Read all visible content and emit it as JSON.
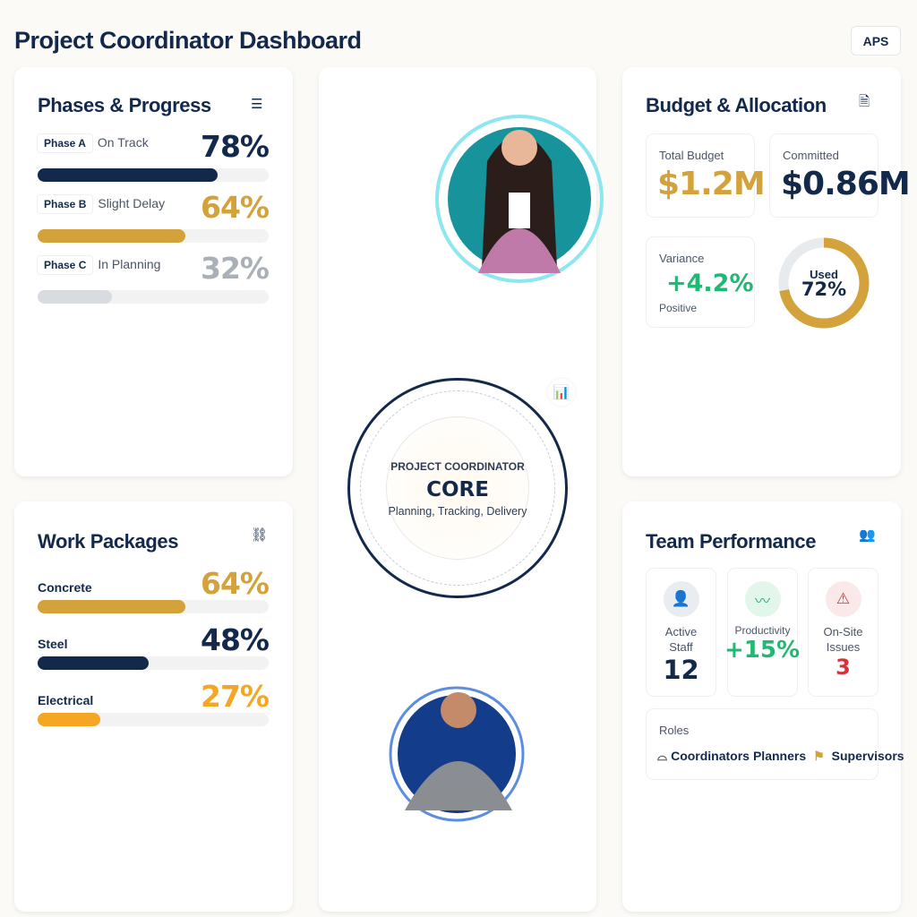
{
  "header": {
    "title": "Project Coordinator Dashboard",
    "aps_label": "APS"
  },
  "colors": {
    "navy": "#13294b",
    "gold": "#d4a23a",
    "amber": "#f5a623",
    "gray": "#a9b0b8",
    "green": "#22b873",
    "red": "#d9303a"
  },
  "phases": {
    "title": "Phases & Progress",
    "icon": "align-left-icon",
    "items": [
      {
        "tag": "Phase A",
        "status": "On Track",
        "percent": 78,
        "label": "78%",
        "color": "#13294b"
      },
      {
        "tag": "Phase B",
        "status": "Slight Delay",
        "percent": 64,
        "label": "64%",
        "color": "#d4a23a"
      },
      {
        "tag": "Phase C",
        "status": "In Planning",
        "percent": 32,
        "label": "32%",
        "color": "#a9b0b8",
        "track_fill": "#d8dce0"
      }
    ]
  },
  "work": {
    "title": "Work Packages",
    "icon": "link-icon",
    "items": [
      {
        "name": "Concrete",
        "percent": 64,
        "label": "64%",
        "color": "#d4a23a"
      },
      {
        "name": "Steel",
        "percent": 48,
        "label": "48%",
        "color": "#13294b"
      },
      {
        "name": "Electrical",
        "percent": 27,
        "label": "27%",
        "color": "#f5a623"
      }
    ]
  },
  "core": {
    "kicker": "PROJECT COORDINATOR",
    "title": "CORE",
    "subtitle": "Planning, Tracking, Delivery",
    "icon": "analytics-icon"
  },
  "budget": {
    "title": "Budget & Allocation",
    "icon": "document-icon",
    "total_label": "Total Budget",
    "total_value": "$1.2M",
    "committed_label": "Committed",
    "committed_value": "$0.86M",
    "variance_label": "Variance",
    "variance_value": "+4.2%",
    "variance_note": "Positive",
    "used_label": "Used",
    "used_value": "72%",
    "used_percent": 72
  },
  "team": {
    "title": "Team Performance",
    "icon": "users-icon",
    "stats": [
      {
        "label": "Active Staff",
        "value": "12",
        "icon": "user-icon"
      },
      {
        "label": "Productivity",
        "value": "+15%",
        "icon": "trend-up-icon"
      },
      {
        "label": "On-Site Issues",
        "value": "3",
        "icon": "warning-icon"
      }
    ],
    "roles_label": "Roles",
    "roles": [
      "Coordinators",
      "Planners",
      "Supervisors"
    ]
  }
}
